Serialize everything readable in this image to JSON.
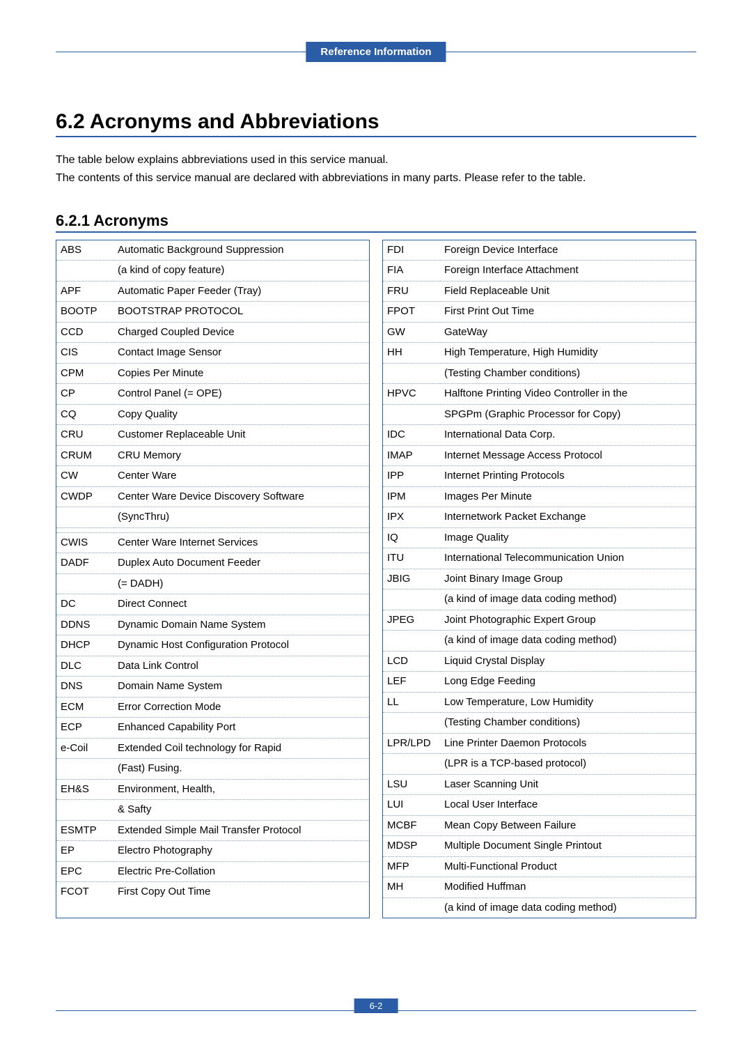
{
  "header": {
    "badge": "Reference Information"
  },
  "section": {
    "title": "6.2 Acronyms and Abbreviations",
    "intro1": "The table below explains abbreviations used in this service manual.",
    "intro2": "The contents of this service manual are declared with abbreviations in many parts. Please refer to the table."
  },
  "subsection": {
    "title": "6.2.1 Acronyms"
  },
  "footer": {
    "page": "6-2"
  },
  "colors": {
    "accent": "#2a5da5",
    "dotted": "#8aa4c8",
    "text": "#000000",
    "bg": "#ffffff"
  },
  "typography": {
    "body_fontsize": 15,
    "h1_fontsize": 30,
    "h2_fontsize": 22
  },
  "acronyms": {
    "left": [
      {
        "abbr": "ABS",
        "def": "Automatic Background Suppression"
      },
      {
        "abbr": "",
        "def": "(a kind of copy feature)"
      },
      {
        "abbr": "APF",
        "def": "Automatic Paper Feeder (Tray)"
      },
      {
        "abbr": "BOOTP",
        "def": "BOOTSTRAP PROTOCOL"
      },
      {
        "abbr": "CCD",
        "def": "Charged Coupled Device"
      },
      {
        "abbr": "CIS",
        "def": "Contact Image Sensor"
      },
      {
        "abbr": "CPM",
        "def": "Copies Per Minute"
      },
      {
        "abbr": "CP",
        "def": "Control Panel (= OPE)"
      },
      {
        "abbr": "CQ",
        "def": "Copy Quality"
      },
      {
        "abbr": "CRU",
        "def": "Customer Replaceable Unit"
      },
      {
        "abbr": "CRUM",
        "def": "CRU Memory"
      },
      {
        "abbr": "CW",
        "def": "Center Ware"
      },
      {
        "abbr": "CWDP",
        "def": "Center Ware Device Discovery Software"
      },
      {
        "abbr": "",
        "def": "(SyncThru)"
      },
      {
        "abbr": "",
        "def": " "
      },
      {
        "abbr": "CWIS",
        "def": "Center Ware Internet Services"
      },
      {
        "abbr": "DADF",
        "def": "Duplex Auto Document Feeder"
      },
      {
        "abbr": "",
        "def": "(= DADH)"
      },
      {
        "abbr": "DC",
        "def": "Direct Connect"
      },
      {
        "abbr": "DDNS",
        "def": "Dynamic Domain Name System"
      },
      {
        "abbr": "DHCP",
        "def": "Dynamic Host Configuration Protocol"
      },
      {
        "abbr": "DLC",
        "def": "Data Link Control"
      },
      {
        "abbr": "DNS",
        "def": "Domain Name System"
      },
      {
        "abbr": "ECM",
        "def": "Error Correction Mode"
      },
      {
        "abbr": "ECP",
        "def": "Enhanced Capability Port"
      },
      {
        "abbr": "e-Coil",
        "def": "Extended Coil technology for Rapid"
      },
      {
        "abbr": "",
        "def": "(Fast) Fusing."
      },
      {
        "abbr": "EH&S",
        "def": "Environment, Health,"
      },
      {
        "abbr": "",
        "def": "& Safty"
      },
      {
        "abbr": "ESMTP",
        "def": "Extended Simple Mail Transfer Protocol"
      },
      {
        "abbr": "EP",
        "def": "Electro Photography"
      },
      {
        "abbr": "EPC",
        "def": "Electric Pre-Collation"
      },
      {
        "abbr": "FCOT",
        "def": "First Copy Out Time"
      }
    ],
    "right": [
      {
        "abbr": "FDI",
        "def": "Foreign Device Interface"
      },
      {
        "abbr": "FIA",
        "def": "Foreign Interface Attachment"
      },
      {
        "abbr": "FRU",
        "def": "Field Replaceable Unit"
      },
      {
        "abbr": "FPOT",
        "def": "First Print Out Time"
      },
      {
        "abbr": "GW",
        "def": "GateWay"
      },
      {
        "abbr": "HH",
        "def": "High Temperature, High Humidity"
      },
      {
        "abbr": "",
        "def": "(Testing Chamber conditions)"
      },
      {
        "abbr": "HPVC",
        "def": "Halftone Printing Video Controller in the"
      },
      {
        "abbr": "",
        "def": "SPGPm (Graphic Processor for Copy)"
      },
      {
        "abbr": "IDC",
        "def": "International Data Corp."
      },
      {
        "abbr": "IMAP",
        "def": "Internet Message Access Protocol"
      },
      {
        "abbr": "IPP",
        "def": "Internet Printing Protocols"
      },
      {
        "abbr": "IPM",
        "def": "Images Per Minute"
      },
      {
        "abbr": "IPX",
        "def": "Internetwork Packet Exchange"
      },
      {
        "abbr": "IQ",
        "def": "Image Quality"
      },
      {
        "abbr": "ITU",
        "def": "International Telecommunication Union"
      },
      {
        "abbr": "JBIG",
        "def": "Joint Binary Image Group"
      },
      {
        "abbr": "",
        "def": "(a kind of image data coding method)"
      },
      {
        "abbr": "JPEG",
        "def": "Joint Photographic Expert Group"
      },
      {
        "abbr": "",
        "def": "(a kind of image data coding method)"
      },
      {
        "abbr": "LCD",
        "def": "Liquid Crystal Display"
      },
      {
        "abbr": "LEF",
        "def": "Long Edge Feeding"
      },
      {
        "abbr": "LL",
        "def": "Low Temperature, Low Humidity"
      },
      {
        "abbr": "",
        "def": "(Testing Chamber conditions)"
      },
      {
        "abbr": "LPR/LPD",
        "def": "Line Printer Daemon Protocols"
      },
      {
        "abbr": "",
        "def": "(LPR is a TCP-based protocol)"
      },
      {
        "abbr": "LSU",
        "def": "Laser Scanning Unit"
      },
      {
        "abbr": "LUI",
        "def": "Local User Interface"
      },
      {
        "abbr": "MCBF",
        "def": "Mean Copy Between Failure"
      },
      {
        "abbr": "MDSP",
        "def": "Multiple Document Single Printout"
      },
      {
        "abbr": "MFP",
        "def": "Multi-Functional Product"
      },
      {
        "abbr": "MH",
        "def": "Modified Huffman"
      },
      {
        "abbr": "",
        "def": "(a kind of image data coding method)"
      }
    ]
  }
}
